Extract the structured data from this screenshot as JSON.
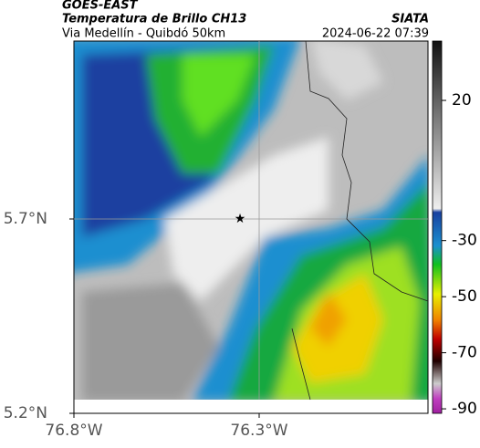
{
  "header": {
    "source": "GOES-EAST",
    "title": "Temperatura de Brillo CH13",
    "org": "SIATA",
    "location": "Via Medellín - Quibdó 50km",
    "datetime": "2024-06-22 07:39"
  },
  "axes": {
    "lat_ticks": [
      {
        "value": 5.7,
        "label": "5.7°N"
      },
      {
        "value": 5.2,
        "label": "5.2°N"
      }
    ],
    "lon_ticks": [
      {
        "value": -76.8,
        "label": "76.8°W"
      },
      {
        "value": -76.3,
        "label": "76.3°W"
      }
    ]
  },
  "colorbar": {
    "ticks": [
      20,
      -30,
      -50,
      -70,
      -90
    ]
  }
}
